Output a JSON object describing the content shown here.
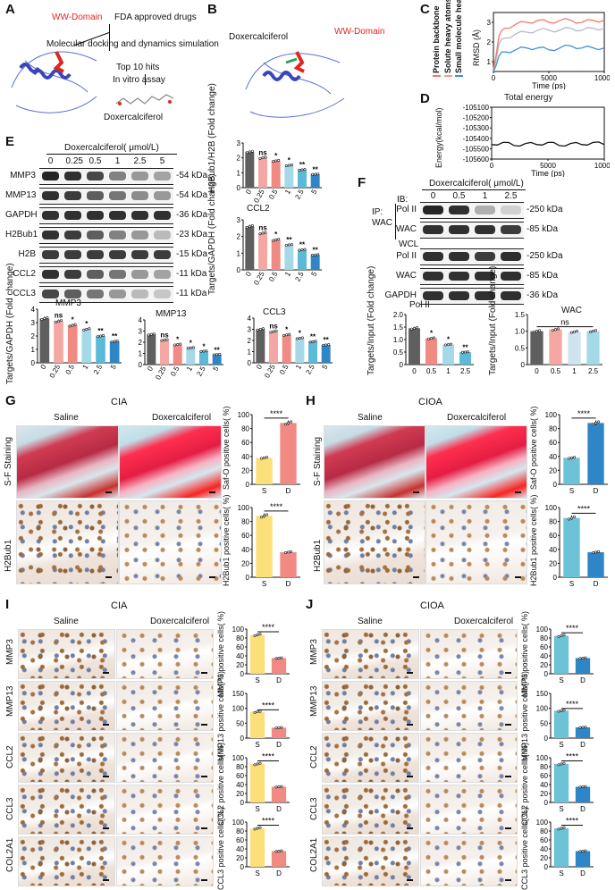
{
  "panels": {
    "A": "A",
    "B": "B",
    "C": "C",
    "D": "D",
    "E": "E",
    "F": "F",
    "G": "G",
    "H": "H",
    "I": "I",
    "J": "J"
  },
  "panelA": {
    "domain": "WW-Domain",
    "fda": "FDA approved drugs",
    "docking": "Molecular docking and dynamics simulation",
    "top10": "Top 10 hits",
    "invitro": "In vitro assay",
    "compound": "Doxercalciferol"
  },
  "panelB": {
    "compound": "Doxercalciferol",
    "domain": "WW-Domain"
  },
  "panelC": {
    "legend": [
      "Protein backbone",
      "Solute heavy atoms",
      "Small molecule heavy atoms"
    ],
    "legend_colors": [
      "#ee7b6a",
      "#f0a08a",
      "#3f90d6"
    ],
    "ylabel": "RMSD (Å)",
    "xlabel": "Time (ps)",
    "yticks": [
      "1",
      "2",
      "3"
    ],
    "xticks": [
      "0",
      "5000",
      "10000"
    ]
  },
  "panelD": {
    "title": "Total energy",
    "ylabel": "Energy(kcal/mol)",
    "xlabel": "Time (ps)",
    "yticks": [
      "-105100",
      "-105200",
      "-105300",
      "-105400",
      "-105500",
      "-105600"
    ],
    "xticks": [
      "0",
      "5000",
      "10000"
    ]
  },
  "panelE": {
    "header": "Doxercalciferol( μmol/L)",
    "doses": [
      "0",
      "0.25",
      "0.5",
      "1",
      "2.5",
      "5"
    ],
    "rows": [
      {
        "label": "MMP3",
        "kda": "-54 kDa"
      },
      {
        "label": "MMP13",
        "kda": "-54 kDa"
      },
      {
        "label": "GAPDH",
        "kda": "-36 kDa"
      },
      {
        "label": "H2Bub1",
        "kda": "-23 kDa"
      },
      {
        "label": "H2B",
        "kda": "-15 kDa"
      },
      {
        "label": "CCL2",
        "kda": "-11 kDa"
      },
      {
        "label": "CCL3",
        "kda": "-11 kDa"
      }
    ],
    "band_intensity": [
      [
        0.95,
        0.9,
        0.8,
        0.55,
        0.45,
        0.4
      ],
      [
        0.9,
        0.85,
        0.7,
        0.6,
        0.5,
        0.45
      ],
      [
        0.9,
        0.9,
        0.9,
        0.9,
        0.9,
        0.9
      ],
      [
        0.9,
        0.85,
        0.7,
        0.55,
        0.45,
        0.3
      ],
      [
        0.85,
        0.85,
        0.85,
        0.85,
        0.85,
        0.85
      ],
      [
        0.9,
        0.85,
        0.7,
        0.6,
        0.45,
        0.4
      ],
      [
        0.8,
        0.7,
        0.6,
        0.45,
        0.3,
        0.25
      ]
    ]
  },
  "panelF": {
    "header": "Doxercalciferol( μmol/L)",
    "doses": [
      "0",
      "0.5",
      "1",
      "2.5"
    ],
    "ib": "IB:",
    "ip": "IP:",
    "wac_ip": "WAC",
    "wcl": "WCL",
    "rows": [
      {
        "label": "Pol II",
        "kda": "-250 kDa"
      },
      {
        "label": "WAC",
        "kda": "-85 kDa"
      },
      {
        "label": "Pol II",
        "kda": "-250 kDa"
      },
      {
        "label": "WAC",
        "kda": "-85 kDa"
      },
      {
        "label": "GAPDH",
        "kda": "-36 kDa"
      }
    ],
    "band_intensity": [
      [
        0.95,
        0.9,
        0.35,
        0.2
      ],
      [
        0.9,
        0.9,
        0.9,
        0.85
      ],
      [
        0.9,
        0.9,
        0.85,
        0.9
      ],
      [
        0.9,
        0.9,
        0.9,
        0.9
      ],
      [
        0.9,
        0.9,
        0.9,
        0.9
      ]
    ]
  },
  "chart_data": [
    {
      "type": "line",
      "panel": "C",
      "title": "",
      "xlabel": "Time (ps)",
      "ylabel": "RMSD (Å)",
      "xlim": [
        0,
        10000
      ],
      "ylim": [
        0.5,
        3.5
      ],
      "series": [
        {
          "name": "Protein backbone",
          "x": [
            0,
            500,
            1000,
            2000,
            3000,
            4000,
            5000,
            6000,
            7000,
            8000,
            9000,
            10000
          ],
          "y": [
            0.5,
            1.9,
            2.2,
            2.4,
            2.5,
            2.6,
            2.6,
            2.6,
            2.7,
            2.6,
            2.7,
            2.7
          ]
        },
        {
          "name": "Solute heavy atoms",
          "x": [
            0,
            500,
            1000,
            2000,
            3000,
            4000,
            5000,
            6000,
            7000,
            8000,
            9000,
            10000
          ],
          "y": [
            0.6,
            2.3,
            2.7,
            2.9,
            3.0,
            3.1,
            3.0,
            3.1,
            3.1,
            3.0,
            3.1,
            3.1
          ]
        },
        {
          "name": "Small molecule heavy atoms",
          "x": [
            0,
            500,
            1000,
            2000,
            3000,
            4000,
            5000,
            6000,
            7000,
            8000,
            9000,
            10000
          ],
          "y": [
            0.5,
            1.3,
            1.5,
            1.6,
            1.7,
            1.7,
            1.6,
            1.7,
            1.8,
            1.7,
            1.7,
            1.7
          ]
        }
      ]
    },
    {
      "type": "line",
      "panel": "D",
      "title": "Total energy",
      "xlabel": "Time (ps)",
      "ylabel": "Energy(kcal/mol)",
      "xlim": [
        0,
        10000
      ],
      "ylim": [
        -105600,
        -105100
      ],
      "series": [
        {
          "name": "",
          "x": [
            0,
            1000,
            2000,
            3000,
            4000,
            5000,
            6000,
            7000,
            8000,
            9000,
            10000
          ],
          "y": [
            -105460,
            -105440,
            -105470,
            -105450,
            -105460,
            -105440,
            -105470,
            -105450,
            -105460,
            -105440,
            -105460
          ]
        }
      ]
    },
    {
      "type": "bar",
      "panel": "E-H2Bub1",
      "ylabel": "H2Bub1/H2B (Fold change)",
      "categories": [
        "0",
        "0.25",
        "0.5",
        "1",
        "2.5",
        "5"
      ],
      "values": [
        2.4,
        2.0,
        1.8,
        1.5,
        1.2,
        0.9
      ],
      "sig": [
        "",
        "ns",
        "*",
        "*",
        "**",
        "**"
      ],
      "ylim": [
        0,
        3
      ],
      "yticks": [
        "0",
        "1",
        "2",
        "3"
      ]
    },
    {
      "type": "bar",
      "panel": "E-CCL2",
      "title": "CCL2",
      "ylabel": "Targets/GAPDH (Fold change)",
      "categories": [
        "0",
        "0.25",
        "0.5",
        "1",
        "2.5",
        "5"
      ],
      "values": [
        2.6,
        2.2,
        1.8,
        1.5,
        1.2,
        0.9
      ],
      "sig": [
        "",
        "ns",
        "*",
        "**",
        "**",
        "**"
      ],
      "ylim": [
        0,
        3
      ],
      "yticks": [
        "0",
        "1",
        "2",
        "3"
      ]
    },
    {
      "type": "bar",
      "panel": "E-MMP3",
      "title": "MMP3",
      "ylabel": "Targets/GAPDH (Fold change)",
      "categories": [
        "0",
        "0.25",
        "0.5",
        "1",
        "2.5",
        "5"
      ],
      "values": [
        3.3,
        3.1,
        2.8,
        2.5,
        2.0,
        1.6
      ],
      "sig": [
        "",
        "ns",
        "*",
        "*",
        "**",
        "**"
      ],
      "ylim": [
        0,
        4
      ],
      "yticks": [
        "0",
        "1",
        "2",
        "3",
        "4"
      ]
    },
    {
      "type": "bar",
      "panel": "E-MMP13",
      "title": "MMP13",
      "categories": [
        "0",
        "0.25",
        "0.5",
        "1",
        "2.5",
        "5"
      ],
      "values": [
        2.7,
        2.2,
        1.8,
        1.5,
        1.2,
        0.9
      ],
      "sig": [
        "",
        "ns",
        "*",
        "*",
        "*",
        "**"
      ],
      "ylim": [
        0,
        4
      ],
      "yticks": [
        "0",
        "1",
        "2",
        "3",
        "4"
      ]
    },
    {
      "type": "bar",
      "panel": "E-CCL3",
      "title": "CCL3",
      "categories": [
        "0",
        "0.25",
        "0.5",
        "1",
        "2.5",
        "5"
      ],
      "values": [
        3.0,
        2.8,
        2.5,
        2.2,
        1.9,
        1.6
      ],
      "sig": [
        "",
        "ns",
        "*",
        "*",
        "**",
        "**"
      ],
      "ylim": [
        0,
        4
      ],
      "yticks": [
        "0",
        "1",
        "2",
        "3",
        "4"
      ]
    },
    {
      "type": "bar",
      "panel": "F-PolII",
      "title": "Pol II",
      "ylabel": "Targets/Input (Fold change)",
      "categories": [
        "0",
        "0.5",
        "1",
        "2.5"
      ],
      "values": [
        1.45,
        1.05,
        0.8,
        0.5
      ],
      "sig": [
        "",
        "*",
        "*",
        "**"
      ],
      "ylim": [
        0,
        2
      ],
      "yticks": [
        "0",
        "0.5",
        "1.0",
        "1.5",
        "2.0"
      ]
    },
    {
      "type": "bar",
      "panel": "F-WAC",
      "title": "WAC",
      "ylabel": "Targets/Input (Fold change)",
      "categories": [
        "0",
        "0.5",
        "1",
        "2.5"
      ],
      "values": [
        1.0,
        1.05,
        0.98,
        1.0
      ],
      "sig": "ns",
      "ylim": [
        0,
        1.5
      ],
      "yticks": [
        "0",
        "0.5",
        "1.0",
        "1.5"
      ]
    },
    {
      "type": "bar",
      "panel": "G-SafO",
      "ylabel": "Saf-O positive cells( %)",
      "categories": [
        "S",
        "D"
      ],
      "values": [
        38,
        88
      ],
      "sig": "****",
      "ylim": [
        0,
        100
      ],
      "yticks": [
        "0",
        "20",
        "40",
        "60",
        "80",
        "100"
      ]
    },
    {
      "type": "bar",
      "panel": "G-H2Bub1",
      "ylabel": "H2Bub1 positive cells( %)",
      "categories": [
        "S",
        "D"
      ],
      "values": [
        88,
        36
      ],
      "sig": "****",
      "ylim": [
        0,
        100
      ],
      "yticks": [
        "0",
        "20",
        "40",
        "60",
        "80",
        "100"
      ]
    },
    {
      "type": "bar",
      "panel": "H-SafO",
      "ylabel": "Saf-O positive cells( %)",
      "categories": [
        "S",
        "D"
      ],
      "values": [
        38,
        88
      ],
      "sig": "****",
      "ylim": [
        0,
        100
      ],
      "yticks": [
        "0",
        "20",
        "40",
        "60",
        "80",
        "100"
      ]
    },
    {
      "type": "bar",
      "panel": "H-H2Bub1",
      "ylabel": "H2Bub1 positive cells( %)",
      "categories": [
        "S",
        "D"
      ],
      "values": [
        85,
        36
      ],
      "sig": "****",
      "ylim": [
        0,
        100
      ],
      "yticks": [
        "0",
        "20",
        "40",
        "60",
        "80",
        "100"
      ]
    },
    {
      "type": "bar",
      "panel": "I-MMP3",
      "ylabel": "MMP3 positive cells( %)",
      "categories": [
        "S",
        "D"
      ],
      "values": [
        87,
        35
      ],
      "sig": "****",
      "ylim": [
        0,
        100
      ],
      "yticks": [
        "0",
        "20",
        "40",
        "60",
        "80",
        "100"
      ]
    },
    {
      "type": "bar",
      "panel": "I-MMP13",
      "ylabel": "MMP13 positive cells( %)",
      "categories": [
        "S",
        "D"
      ],
      "values": [
        88,
        35
      ],
      "sig": "****",
      "ylim": [
        0,
        150
      ],
      "yticks": [
        "0",
        "50",
        "100",
        "150"
      ]
    },
    {
      "type": "bar",
      "panel": "I-CCL2",
      "ylabel": "CCL2 positive cells( %)",
      "categories": [
        "S",
        "D"
      ],
      "values": [
        86,
        35
      ],
      "sig": "****",
      "ylim": [
        0,
        100
      ],
      "yticks": [
        "0",
        "20",
        "40",
        "60",
        "80",
        "100"
      ]
    },
    {
      "type": "bar",
      "panel": "I-CCL3",
      "ylabel": "CCL3 positive cells( %)",
      "categories": [
        "S",
        "D"
      ],
      "values": [
        86,
        35
      ],
      "sig": "****",
      "ylim": [
        0,
        100
      ],
      "yticks": [
        "0",
        "20",
        "40",
        "60",
        "80",
        "100"
      ]
    },
    {
      "type": "bar",
      "panel": "J-MMP3",
      "ylabel": "MMP3 positive cells( %)",
      "categories": [
        "S",
        "D"
      ],
      "values": [
        85,
        35
      ],
      "sig": "****",
      "ylim": [
        0,
        100
      ],
      "yticks": [
        "0",
        "20",
        "40",
        "60",
        "80",
        "100"
      ]
    },
    {
      "type": "bar",
      "panel": "J-MMP13",
      "ylabel": "MMP13 positive cells( %)",
      "categories": [
        "S",
        "D"
      ],
      "values": [
        92,
        36
      ],
      "sig": "****",
      "ylim": [
        0,
        150
      ],
      "yticks": [
        "0",
        "50",
        "100",
        "150"
      ]
    },
    {
      "type": "bar",
      "panel": "J-CCL2",
      "ylabel": "CCL2 positive cells( %)",
      "categories": [
        "S",
        "D"
      ],
      "values": [
        86,
        35
      ],
      "sig": "****",
      "ylim": [
        0,
        100
      ],
      "yticks": [
        "0",
        "20",
        "40",
        "60",
        "80",
        "100"
      ]
    },
    {
      "type": "bar",
      "panel": "J-CCL3",
      "ylabel": "CCL3 positive cells( %)",
      "categories": [
        "S",
        "D"
      ],
      "values": [
        86,
        35
      ],
      "sig": "****",
      "ylim": [
        0,
        100
      ],
      "yticks": [
        "0",
        "20",
        "40",
        "60",
        "80",
        "100"
      ]
    }
  ],
  "bar_colors": {
    "dose6": [
      "#5f5f5f",
      "#f4a7a3",
      "#f08a82",
      "#a6d9e8",
      "#5bbad8",
      "#2f86c6"
    ],
    "dose4": [
      "#5f5f5f",
      "#f08a82",
      "#a6d9e8",
      "#5bbad8"
    ],
    "wac": [
      "#5f5f5f",
      "#f4a7a3",
      "#cfe4ef",
      "#a6d9e8"
    ],
    "cia_sd": [
      "#fbe07a",
      "#f08a82"
    ],
    "cioa_sd": [
      "#6cc2d6",
      "#2f86c6"
    ]
  },
  "histo": {
    "G": {
      "title": "CIA",
      "saline": "Saline",
      "doxer": "Doxercalciferol",
      "row1": "S-F Staining",
      "row2": "H2Bub1"
    },
    "H": {
      "title": "CIOA",
      "saline": "Saline",
      "doxer": "Doxercalciferol",
      "row1": "S-F Staining",
      "row2": "H2Bub1"
    },
    "I": {
      "title": "CIA",
      "saline": "Saline",
      "doxer": "Doxercalciferol",
      "rows": [
        "MMP3",
        "MMP13",
        "CCL2",
        "CCL3",
        "COL2A1"
      ]
    },
    "J": {
      "title": "CIOA",
      "saline": "Saline",
      "doxer": "Doxercalciferol",
      "rows": [
        "MMP3",
        "MMP13",
        "CCL2",
        "CCL3",
        "COL2A1"
      ]
    }
  }
}
